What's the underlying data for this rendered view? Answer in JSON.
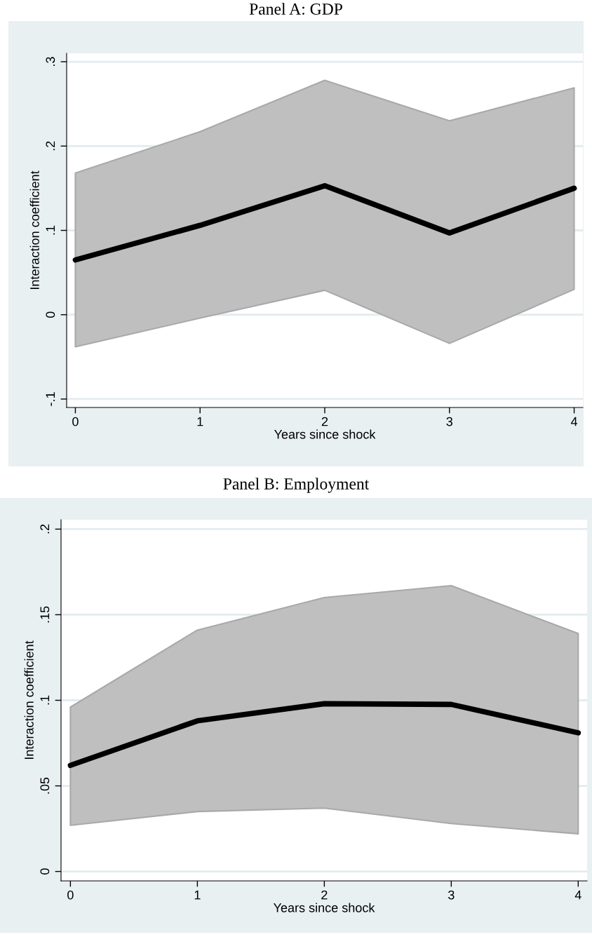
{
  "chart_data": [
    {
      "type": "line",
      "title": "Panel A: GDP",
      "xlabel": "Years since shock",
      "ylabel": "Interaction coefficient",
      "x": [
        0,
        1,
        2,
        3,
        4
      ],
      "series": [
        {
          "color": "#000000",
          "values": [
            0.065,
            0.106,
            0.153,
            0.097,
            0.15
          ],
          "lower": [
            -0.038,
            -0.004,
            0.029,
            -0.034,
            0.03
          ],
          "upper": [
            0.168,
            0.217,
            0.278,
            0.23,
            0.269
          ]
        }
      ],
      "xlim": [
        -0.07,
        4.07
      ],
      "xticks": [
        0,
        1,
        2,
        3,
        4
      ],
      "ylim": [
        -0.11,
        0.31
      ],
      "yticks": [
        {
          "value": -0.1,
          "label": "-.1"
        },
        0,
        {
          "value": 0.1,
          "label": ".1"
        },
        {
          "value": 0.2,
          "label": ".2"
        },
        {
          "value": 0.3,
          "label": ".3"
        }
      ],
      "grid": "y",
      "marker": "none",
      "line_style": "solid"
    },
    {
      "type": "line",
      "title": "Panel B: Employment",
      "xlabel": "Years since shock",
      "ylabel": "Interaction coefficient",
      "x": [
        0,
        1,
        2,
        3,
        4
      ],
      "series": [
        {
          "color": "#000000",
          "values": [
            0.062,
            0.088,
            0.098,
            0.0976,
            0.081
          ],
          "lower": [
            0.027,
            0.035,
            0.037,
            0.028,
            0.022
          ],
          "upper": [
            0.096,
            0.141,
            0.16,
            0.167,
            0.139
          ]
        }
      ],
      "xlim": [
        -0.074,
        4.07
      ],
      "xticks": [
        0,
        1,
        2,
        3,
        4
      ],
      "ylim": [
        -0.0055,
        0.2055
      ],
      "yticks": [
        0,
        {
          "value": 0.05,
          "label": ".05"
        },
        {
          "value": 0.1,
          "label": ".1"
        },
        {
          "value": 0.15,
          "label": ".15"
        },
        {
          "value": 0.2,
          "label": ".2"
        }
      ],
      "grid": "y",
      "marker": "none",
      "line_style": "solid"
    }
  ]
}
